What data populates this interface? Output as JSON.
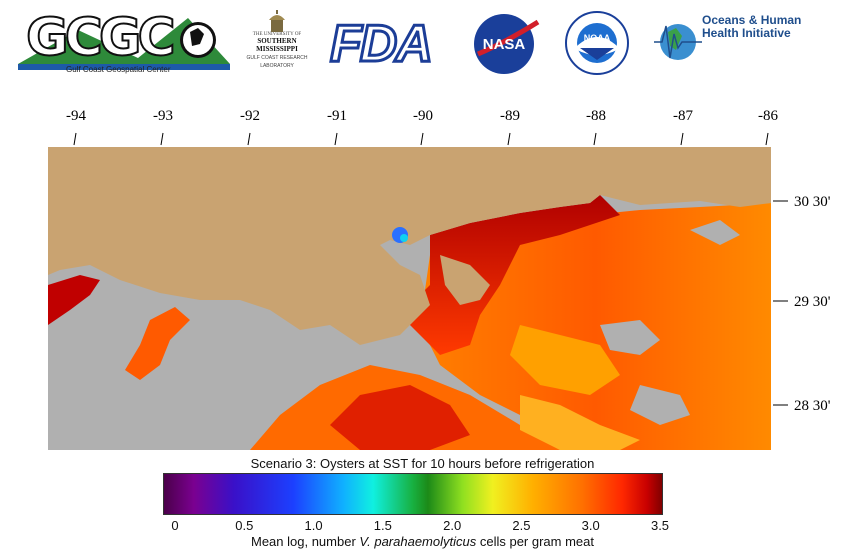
{
  "logos": {
    "gcgc": {
      "text": "GCGC",
      "subtitle": "Gulf Coast Geospatial Center"
    },
    "usm": {
      "line1": "THE UNIVERSITY OF",
      "line2a": "SOUTHERN",
      "line2b": "MISSISSIPPI",
      "line3a": "GULF COAST RESEARCH",
      "line3b": "LABORATORY"
    },
    "fda": {
      "text": "FDA"
    },
    "nasa": {
      "text": "NASA"
    },
    "noaa": {
      "text": "NOAA"
    },
    "ohhi": {
      "line1": "Oceans & Human",
      "line2": "Health Initiative"
    }
  },
  "map": {
    "longitude_labels": [
      "-94",
      "-93",
      "-92",
      "-91",
      "-90",
      "-89",
      "-88",
      "-87",
      "-86"
    ],
    "latitude_labels": [
      "30 30'",
      "29 30'",
      "28 30'"
    ],
    "colors": {
      "land": "#c9a371",
      "no_data": "#b0b0b0"
    }
  },
  "caption": "Scenario 3: Oysters at SST for 10 hours before refrigeration",
  "scale": {
    "ticks": [
      "0",
      "0.5",
      "1.0",
      "1.5",
      "2.0",
      "2.5",
      "3.0",
      "3.5"
    ],
    "label_prefix": "Mean log, number ",
    "label_species": "V. parahaemolyticus",
    "label_suffix": " cells per gram meat"
  }
}
